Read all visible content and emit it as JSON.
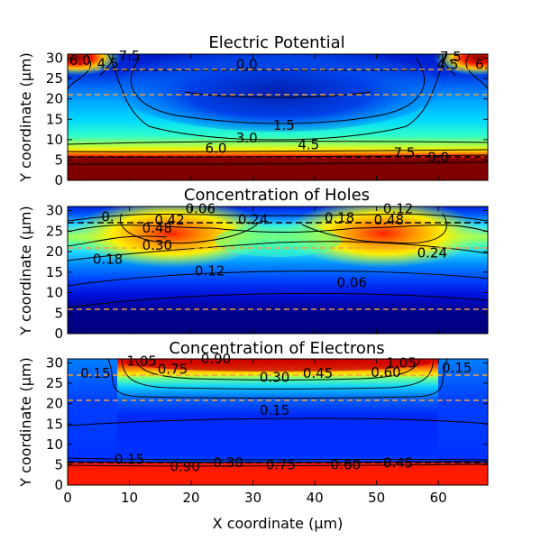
{
  "colors": {
    "dark_red": "#800000",
    "red": "#ff1a00",
    "orange": "#ff8800",
    "yellow": "#ffee00",
    "cyan": "#30ffc8",
    "light_blue": "#00a8ff",
    "blue": "#0018ff",
    "dark_blue": "#00008a",
    "dashed_orange": "#f0a040",
    "dashed_black": "#000000"
  },
  "figure": {
    "xlabel": "X coordinate (µm)"
  },
  "chart_data": [
    {
      "type": "heatmap",
      "title": "Electric Potential",
      "ylabel": "Y coordinate (µm)",
      "xlim": [
        0,
        68
      ],
      "ylim": [
        0,
        31
      ],
      "yticks": [
        "0",
        "5",
        "10",
        "15",
        "20",
        "25",
        "30"
      ],
      "xticks_labeled": false,
      "dashed_lines_y": [
        5.7,
        21,
        27.2
      ],
      "contour_labels": [
        {
          "text": "6.0",
          "x": 2,
          "y": 29.5
        },
        {
          "text": "4.5",
          "x": 6.5,
          "y": 28.7
        },
        {
          "text": "7.5",
          "x": 10,
          "y": 30.6
        },
        {
          "text": "0.0",
          "x": 29,
          "y": 28.5
        },
        {
          "text": "7.5",
          "x": 62,
          "y": 30.3
        },
        {
          "text": "4.5",
          "x": 61.5,
          "y": 28.5
        },
        {
          "text": "6.",
          "x": 67,
          "y": 28.5
        },
        {
          "text": "1.5",
          "x": 35,
          "y": 13.5
        },
        {
          "text": "3.0",
          "x": 29,
          "y": 10.4
        },
        {
          "text": "4.5",
          "x": 39,
          "y": 8.7
        },
        {
          "text": "6.0",
          "x": 24,
          "y": 7.9
        },
        {
          "text": "7.5",
          "x": 54.5,
          "y": 6.7
        },
        {
          "text": "9.0",
          "x": 60,
          "y": 5.7
        }
      ]
    },
    {
      "type": "heatmap",
      "title": "Concentration of Holes",
      "ylabel": "Y coordinate (µm)",
      "xlim": [
        0,
        68
      ],
      "ylim": [
        0,
        31
      ],
      "yticks": [
        "0",
        "5",
        "10",
        "15",
        "20",
        "25",
        "30"
      ],
      "xticks_labeled": false,
      "dashed_lines_y": [
        5.7,
        21,
        27.2
      ],
      "contour_labels": [
        {
          "text": "0.",
          "x": 6.5,
          "y": 28.5
        },
        {
          "text": "0.42",
          "x": 16.5,
          "y": 27.7
        },
        {
          "text": "0.48",
          "x": 14.5,
          "y": 25.7
        },
        {
          "text": "0.06",
          "x": 21.5,
          "y": 30.5
        },
        {
          "text": "0.24",
          "x": 30,
          "y": 27.8
        },
        {
          "text": "0.30",
          "x": 14.5,
          "y": 21.5
        },
        {
          "text": "0.18",
          "x": 44,
          "y": 28.2
        },
        {
          "text": "0.12",
          "x": 53.5,
          "y": 30.5
        },
        {
          "text": "0.48",
          "x": 52,
          "y": 27.7
        },
        {
          "text": "0.18",
          "x": 6.5,
          "y": 18.1
        },
        {
          "text": "0.24",
          "x": 59,
          "y": 19.7
        },
        {
          "text": "0.12",
          "x": 23,
          "y": 15.3
        },
        {
          "text": "0.06",
          "x": 46,
          "y": 12.4
        }
      ]
    },
    {
      "type": "heatmap",
      "title": "Concentration of Electrons",
      "ylabel": "Y coordinate (µm)",
      "xlabel": "X coordinate (µm)",
      "xlim": [
        0,
        68
      ],
      "ylim": [
        0,
        31
      ],
      "xticks": [
        "0",
        "10",
        "20",
        "30",
        "40",
        "50",
        "60"
      ],
      "yticks": [
        "0",
        "5",
        "10",
        "15",
        "20",
        "25",
        "30"
      ],
      "dashed_lines_y": [
        5.7,
        21,
        27.2
      ],
      "contour_labels": [
        {
          "text": "0.15",
          "x": 4.5,
          "y": 27.5
        },
        {
          "text": "1.05",
          "x": 12,
          "y": 30.5
        },
        {
          "text": "0.90",
          "x": 24,
          "y": 31
        },
        {
          "text": "0.75",
          "x": 17,
          "y": 28.4
        },
        {
          "text": "0.30",
          "x": 33.5,
          "y": 26.5
        },
        {
          "text": "0.45",
          "x": 40.5,
          "y": 27.5
        },
        {
          "text": "1.05",
          "x": 54,
          "y": 30
        },
        {
          "text": "0.60",
          "x": 51.5,
          "y": 27.7
        },
        {
          "text": "0.15",
          "x": 63,
          "y": 28.8
        },
        {
          "text": "0.15",
          "x": 33.5,
          "y": 18.4
        },
        {
          "text": "0.15",
          "x": 10,
          "y": 6.3
        },
        {
          "text": "0.90",
          "x": 19,
          "y": 4.5
        },
        {
          "text": "0.30",
          "x": 26,
          "y": 5.5
        },
        {
          "text": "0.75",
          "x": 34.5,
          "y": 5
        },
        {
          "text": "0.60",
          "x": 45,
          "y": 5
        },
        {
          "text": "0.45",
          "x": 53.5,
          "y": 5.4
        }
      ]
    }
  ]
}
